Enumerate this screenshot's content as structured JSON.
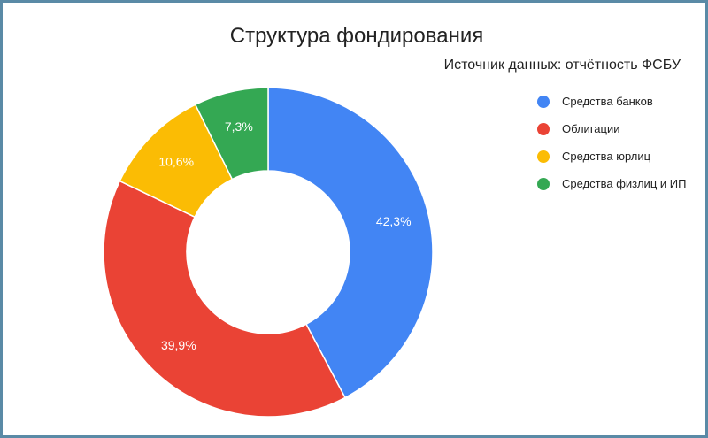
{
  "chart_data": {
    "type": "pie",
    "title": "Структура фондирования",
    "subtitle": "Источник данных: отчётность ФСБУ",
    "donut": true,
    "legend_position": "right",
    "slices": [
      {
        "label": "Средства банков",
        "value": 42.3,
        "value_label": "42,3%",
        "color": "#4285f4"
      },
      {
        "label": "Облигации",
        "value": 39.9,
        "value_label": "39,9%",
        "color": "#ea4335"
      },
      {
        "label": "Средства юрлиц",
        "value": 10.6,
        "value_label": "10,6%",
        "color": "#fbbc04"
      },
      {
        "label": "Средства физлиц и ИП",
        "value": 7.3,
        "value_label": "7,3%",
        "color": "#34a853"
      }
    ]
  }
}
